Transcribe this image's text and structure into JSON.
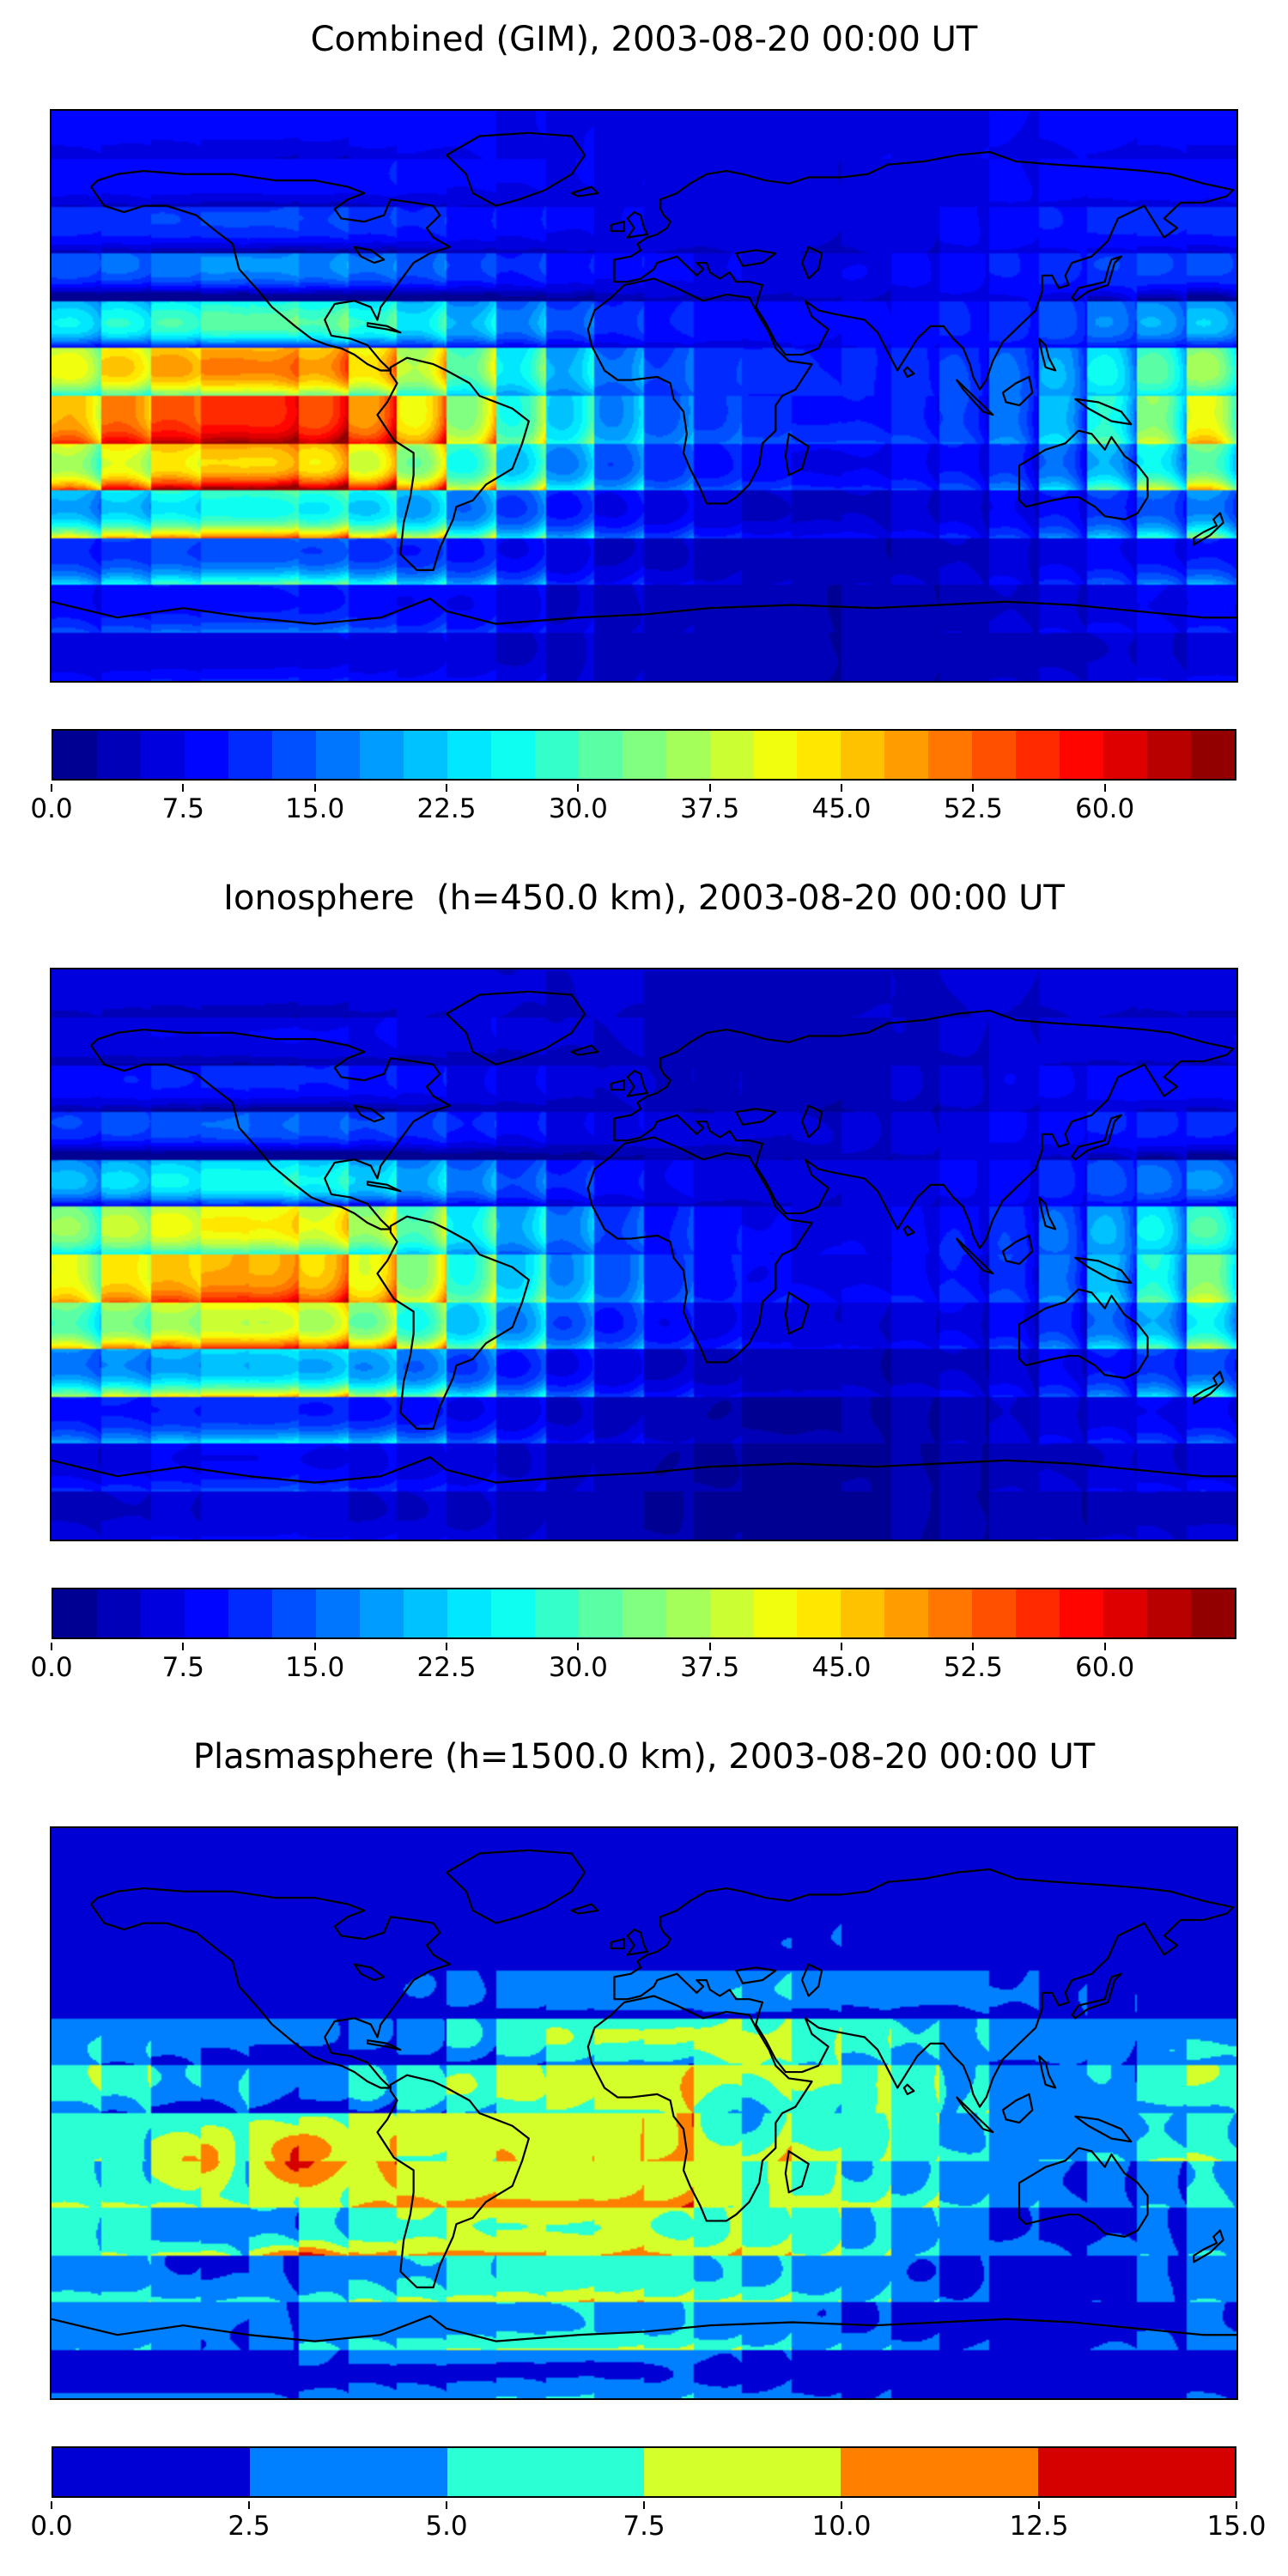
{
  "figure": {
    "background": "#ffffff",
    "colormap": "jet",
    "overlay": "world-coastlines",
    "map_extent": {
      "lon": [
        -180,
        180
      ],
      "lat": [
        -90,
        90
      ]
    }
  },
  "chart_data": [
    {
      "type": "heatmap",
      "title": "Combined (GIM), 2003-08-20 00:00 UT",
      "projection": "equirectangular",
      "colormap": "jet",
      "contour_step": 2.5,
      "zlim": [
        0,
        67.5
      ],
      "colorbar_tick_values": [
        0,
        7.5,
        15,
        22.5,
        30,
        37.5,
        45,
        52.5,
        60
      ],
      "colorbar_tick_labels": [
        "0.0",
        "7.5",
        "15.0",
        "22.5",
        "30.0",
        "37.5",
        "45.0",
        "52.5",
        "60.0"
      ],
      "lon": [
        -180,
        -165,
        -150,
        -135,
        -120,
        -105,
        -90,
        -75,
        -60,
        -45,
        -30,
        -15,
        0,
        15,
        30,
        45,
        60,
        75,
        90,
        105,
        120,
        135,
        150,
        165,
        180
      ],
      "lat": [
        90,
        75,
        60,
        45,
        30,
        15,
        0,
        -15,
        -30,
        -45,
        -60,
        -75,
        -90
      ],
      "values": [
        [
          8,
          8,
          8,
          8,
          8,
          8,
          8,
          8,
          8,
          7,
          7,
          7,
          7,
          7,
          7,
          7,
          7,
          7,
          7,
          8,
          8,
          8,
          8,
          8,
          8
        ],
        [
          9,
          9,
          9,
          9,
          9,
          9,
          9,
          9,
          8,
          8,
          7,
          7,
          6,
          6,
          6,
          6,
          6,
          7,
          7,
          8,
          8,
          9,
          9,
          9,
          9
        ],
        [
          11,
          11,
          12,
          12,
          12,
          12,
          11,
          10,
          9,
          8,
          8,
          7,
          7,
          6,
          6,
          6,
          6,
          7,
          8,
          9,
          10,
          10,
          11,
          11,
          11
        ],
        [
          14,
          15,
          16,
          17,
          17,
          16,
          15,
          13,
          12,
          10,
          9,
          8,
          8,
          7,
          7,
          7,
          7,
          8,
          9,
          10,
          11,
          12,
          13,
          13,
          14
        ],
        [
          20,
          22,
          24,
          26,
          26,
          25,
          23,
          20,
          17,
          14,
          12,
          10,
          9,
          9,
          8,
          8,
          9,
          9,
          10,
          11,
          13,
          15,
          17,
          18,
          20
        ],
        [
          38,
          42,
          45,
          47,
          47,
          45,
          42,
          36,
          30,
          24,
          19,
          15,
          12,
          11,
          10,
          10,
          10,
          11,
          12,
          14,
          18,
          23,
          28,
          33,
          38
        ],
        [
          46,
          51,
          54,
          56,
          56,
          54,
          49,
          43,
          35,
          28,
          23,
          18,
          14,
          12,
          11,
          10,
          10,
          11,
          13,
          16,
          21,
          27,
          34,
          40,
          46
        ],
        [
          40,
          44,
          47,
          49,
          49,
          47,
          43,
          37,
          30,
          24,
          19,
          15,
          12,
          10,
          9,
          8,
          8,
          9,
          10,
          12,
          16,
          21,
          27,
          33,
          40
        ],
        [
          22,
          25,
          28,
          30,
          30,
          29,
          26,
          22,
          18,
          14,
          11,
          8,
          7,
          6,
          5,
          5,
          5,
          6,
          7,
          8,
          10,
          13,
          16,
          19,
          22
        ],
        [
          12,
          13,
          14,
          15,
          15,
          14,
          13,
          11,
          10,
          8,
          6,
          5,
          4,
          4,
          3,
          3,
          4,
          4,
          5,
          6,
          7,
          8,
          9,
          10,
          12
        ],
        [
          9,
          9,
          10,
          10,
          10,
          10,
          9,
          8,
          8,
          7,
          5,
          4,
          4,
          3,
          3,
          3,
          3,
          4,
          4,
          5,
          6,
          7,
          8,
          8,
          9
        ],
        [
          7,
          7,
          7,
          7,
          7,
          7,
          7,
          6,
          6,
          5,
          4,
          4,
          3,
          3,
          3,
          3,
          3,
          4,
          4,
          4,
          5,
          5,
          6,
          6,
          7
        ],
        [
          5,
          5,
          5,
          5,
          5,
          5,
          5,
          5,
          5,
          4,
          4,
          4,
          3,
          3,
          3,
          3,
          3,
          3,
          4,
          4,
          4,
          4,
          5,
          5,
          5
        ]
      ]
    },
    {
      "type": "heatmap",
      "title": "Ionosphere  (h=450.0 km), 2003-08-20 00:00 UT",
      "projection": "equirectangular",
      "colormap": "jet",
      "contour_step": 2.5,
      "zlim": [
        0,
        67.5
      ],
      "colorbar_tick_values": [
        0,
        7.5,
        15,
        22.5,
        30,
        37.5,
        45,
        52.5,
        60
      ],
      "colorbar_tick_labels": [
        "0.0",
        "7.5",
        "15.0",
        "22.5",
        "30.0",
        "37.5",
        "45.0",
        "52.5",
        "60.0"
      ],
      "lon": [
        -180,
        -165,
        -150,
        -135,
        -120,
        -105,
        -90,
        -75,
        -60,
        -45,
        -30,
        -15,
        0,
        15,
        30,
        45,
        60,
        75,
        90,
        105,
        120,
        135,
        150,
        165,
        180
      ],
      "lat": [
        90,
        75,
        60,
        45,
        30,
        15,
        0,
        -15,
        -30,
        -45,
        -60,
        -75,
        -90
      ],
      "values": [
        [
          6,
          6,
          6,
          6,
          6,
          6,
          6,
          6,
          6,
          5,
          5,
          5,
          5,
          5,
          5,
          5,
          5,
          5,
          5,
          6,
          6,
          6,
          6,
          6,
          6
        ],
        [
          7,
          7,
          7,
          7,
          7,
          7,
          7,
          7,
          6,
          6,
          5,
          5,
          5,
          4,
          4,
          4,
          4,
          5,
          5,
          6,
          6,
          7,
          7,
          7,
          7
        ],
        [
          9,
          9,
          10,
          10,
          10,
          10,
          9,
          8,
          7,
          6,
          6,
          5,
          5,
          4,
          4,
          4,
          4,
          5,
          6,
          7,
          8,
          8,
          9,
          9,
          9
        ],
        [
          12,
          13,
          14,
          14,
          14,
          13,
          12,
          11,
          10,
          8,
          7,
          6,
          6,
          5,
          5,
          5,
          5,
          6,
          7,
          8,
          9,
          10,
          11,
          11,
          12
        ],
        [
          17,
          19,
          21,
          22,
          22,
          21,
          19,
          16,
          14,
          11,
          9,
          8,
          7,
          7,
          6,
          6,
          7,
          7,
          8,
          9,
          10,
          12,
          14,
          15,
          17
        ],
        [
          32,
          35,
          38,
          40,
          40,
          38,
          34,
          29,
          24,
          19,
          15,
          12,
          9,
          8,
          7,
          7,
          7,
          8,
          9,
          11,
          14,
          18,
          23,
          27,
          32
        ],
        [
          40,
          43,
          46,
          47,
          47,
          45,
          41,
          35,
          28,
          22,
          18,
          14,
          11,
          9,
          8,
          7,
          7,
          8,
          10,
          12,
          16,
          21,
          27,
          33,
          40
        ],
        [
          34,
          37,
          40,
          42,
          42,
          40,
          36,
          30,
          24,
          19,
          15,
          11,
          9,
          7,
          6,
          6,
          6,
          7,
          8,
          9,
          12,
          16,
          21,
          27,
          34
        ],
        [
          18,
          20,
          22,
          24,
          24,
          23,
          21,
          18,
          14,
          11,
          8,
          6,
          5,
          4,
          4,
          3,
          4,
          4,
          5,
          6,
          8,
          10,
          13,
          15,
          18
        ],
        [
          10,
          11,
          11,
          12,
          12,
          11,
          10,
          9,
          8,
          6,
          5,
          4,
          3,
          3,
          2,
          2,
          3,
          3,
          4,
          5,
          6,
          7,
          8,
          9,
          10
        ],
        [
          7,
          7,
          8,
          8,
          8,
          8,
          7,
          7,
          6,
          5,
          4,
          3,
          3,
          2,
          2,
          2,
          2,
          3,
          3,
          4,
          5,
          5,
          6,
          6,
          7
        ],
        [
          5,
          5,
          6,
          6,
          6,
          6,
          5,
          5,
          5,
          4,
          3,
          3,
          2,
          2,
          2,
          2,
          2,
          3,
          3,
          3,
          4,
          4,
          5,
          5,
          5
        ],
        [
          4,
          4,
          4,
          4,
          4,
          4,
          4,
          4,
          4,
          3,
          3,
          3,
          2,
          2,
          2,
          2,
          2,
          3,
          3,
          3,
          3,
          3,
          4,
          4,
          4
        ]
      ]
    },
    {
      "type": "heatmap",
      "title": "Plasmasphere (h=1500.0 km), 2003-08-20 00:00 UT",
      "projection": "equirectangular",
      "colormap": "jet",
      "contour_step": 2.5,
      "zlim": [
        0,
        15
      ],
      "colorbar_tick_values": [
        0,
        2.5,
        5,
        7.5,
        10,
        12.5,
        15
      ],
      "colorbar_tick_labels": [
        "0.0",
        "2.5",
        "5.0",
        "7.5",
        "10.0",
        "12.5",
        "15.0"
      ],
      "lon": [
        -180,
        -165,
        -150,
        -135,
        -120,
        -105,
        -90,
        -75,
        -60,
        -45,
        -30,
        -15,
        0,
        15,
        30,
        45,
        60,
        75,
        90,
        105,
        120,
        135,
        150,
        165,
        180
      ],
      "lat": [
        90,
        75,
        60,
        45,
        30,
        15,
        0,
        -15,
        -30,
        -45,
        -60,
        -75,
        -90
      ],
      "values": [
        [
          1,
          1,
          1,
          1,
          1,
          1,
          1,
          1,
          1,
          1,
          1,
          1,
          1,
          1,
          1,
          1,
          1,
          1,
          1,
          1,
          1,
          1,
          1,
          1,
          1
        ],
        [
          1,
          1,
          1,
          1,
          1,
          1,
          1,
          1,
          1,
          1,
          1,
          1,
          1.5,
          1.5,
          1.5,
          1.5,
          1,
          1,
          1,
          1,
          1,
          1,
          1,
          1,
          1
        ],
        [
          1.5,
          1.5,
          1.5,
          1.5,
          1.5,
          1.5,
          1.5,
          1.5,
          2,
          2,
          2,
          2,
          2,
          2,
          2,
          2,
          2,
          1.5,
          1.5,
          1.5,
          1.5,
          1.5,
          1.5,
          1.5,
          1.5
        ],
        [
          2,
          2,
          2,
          2,
          2,
          2,
          2,
          2,
          3,
          3,
          4,
          4,
          4,
          4,
          4,
          4,
          3,
          3,
          3,
          2,
          2,
          2,
          2,
          2,
          2
        ],
        [
          3,
          3,
          3,
          3,
          3,
          3,
          3,
          4,
          5,
          6,
          7,
          7,
          7,
          7,
          7,
          6,
          5,
          5,
          4,
          4,
          3,
          3,
          3,
          3,
          3
        ],
        [
          7,
          6,
          5,
          4,
          4,
          4,
          5,
          6,
          7,
          8,
          9,
          9,
          9,
          9,
          8,
          8,
          7,
          6,
          5,
          4,
          4,
          5,
          6,
          8,
          7
        ],
        [
          6,
          6,
          6,
          6,
          7,
          7,
          8,
          9,
          9,
          9,
          9,
          9,
          9,
          8,
          4,
          7,
          7,
          6,
          5,
          4,
          4,
          4,
          5,
          6,
          6
        ],
        [
          6,
          7,
          8,
          11,
          9,
          13,
          10,
          9,
          9,
          10,
          9,
          9,
          9,
          8,
          7,
          7,
          5,
          4,
          4,
          3,
          3,
          3,
          4,
          5,
          6
        ],
        [
          6,
          6,
          5,
          4,
          5,
          6,
          7,
          8,
          8,
          8,
          8,
          8,
          8,
          7,
          7,
          6,
          5,
          4,
          3,
          2,
          2,
          2,
          3,
          4,
          6
        ],
        [
          4,
          4,
          3,
          1.5,
          3,
          4,
          5,
          5,
          6,
          6,
          6,
          6,
          6,
          5,
          5,
          4,
          3,
          3,
          2,
          2,
          2,
          2,
          3,
          3,
          4
        ],
        [
          3,
          3,
          3,
          3,
          3,
          3,
          4,
          4,
          4,
          5,
          5,
          5,
          4,
          4,
          3,
          3,
          2,
          2,
          1.5,
          1.5,
          1.5,
          2,
          2,
          3,
          3
        ],
        [
          2,
          2,
          2,
          2,
          2,
          3,
          3,
          3,
          3,
          3,
          3,
          3,
          3,
          3,
          2,
          2,
          2,
          1.5,
          1.5,
          1.5,
          1.5,
          1.5,
          2,
          2,
          2
        ],
        [
          1,
          1,
          1,
          1,
          1,
          1,
          1,
          1,
          1,
          1,
          1,
          1,
          1,
          1,
          1,
          1,
          1,
          1,
          1,
          1,
          1,
          1,
          1,
          1,
          1
        ]
      ]
    }
  ]
}
